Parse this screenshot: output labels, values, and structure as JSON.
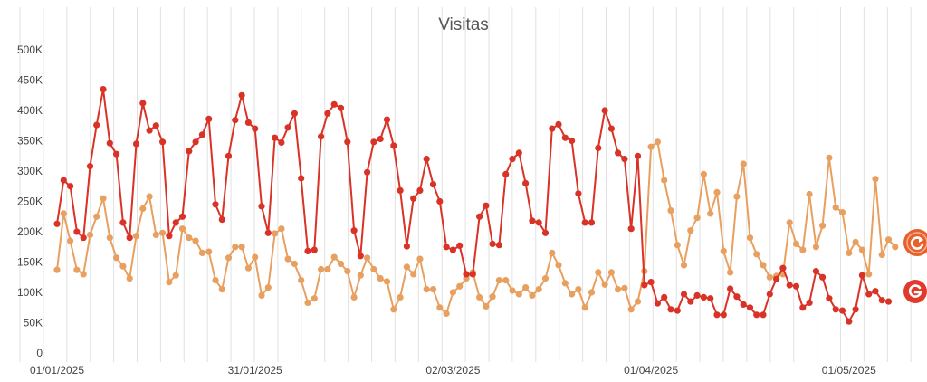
{
  "chart_data": {
    "type": "line",
    "title": "Visitas",
    "xlabel": "",
    "ylabel": "",
    "ylim": [
      0,
      500000
    ],
    "y_ticks": [
      "0",
      "50K",
      "100K",
      "150K",
      "200K",
      "250K",
      "300K",
      "350K",
      "400K",
      "450K",
      "500K"
    ],
    "x_ticks": [
      "01/01/2025",
      "31/01/2025",
      "02/03/2025",
      "01/04/2025",
      "01/05/2025"
    ],
    "x_tick_days": [
      0,
      30,
      60,
      90,
      120
    ],
    "grid": "vertical",
    "legend": "end-of-line icons",
    "series": [
      {
        "color": "#d93226",
        "icon": "google-g-icon",
        "x": [
          0,
          1,
          2,
          3,
          4,
          5,
          6,
          7,
          8,
          9,
          10,
          11,
          12,
          13,
          14,
          15,
          16,
          17,
          18,
          19,
          20,
          21,
          22,
          23,
          24,
          25,
          26,
          27,
          28,
          29,
          30,
          31,
          32,
          33,
          34,
          35,
          36,
          37,
          38,
          39,
          40,
          41,
          42,
          43,
          44,
          45,
          46,
          47,
          48,
          49,
          50,
          51,
          52,
          53,
          54,
          55,
          56,
          57,
          58,
          59,
          60,
          61,
          62,
          63,
          64,
          65,
          66,
          67,
          68,
          69,
          70,
          71,
          72,
          73,
          74,
          75,
          76,
          77,
          78,
          79,
          80,
          81,
          82,
          83,
          84,
          85,
          86,
          87,
          88,
          89,
          90,
          91,
          92,
          93,
          94,
          95,
          96,
          97,
          98,
          99,
          100,
          101,
          102,
          103,
          104,
          105,
          106,
          107,
          108,
          109,
          110,
          111,
          112,
          113,
          114,
          115,
          116,
          117,
          118,
          119,
          120,
          121,
          122,
          123,
          124,
          125,
          126
        ],
        "values": [
          213000,
          285000,
          275000,
          200000,
          190000,
          308000,
          376000,
          435000,
          346000,
          328000,
          215000,
          190000,
          345000,
          412000,
          367000,
          375000,
          348000,
          193000,
          215000,
          225000,
          333000,
          348000,
          360000,
          386000,
          245000,
          220000,
          325000,
          384000,
          425000,
          380000,
          370000,
          242000,
          198000,
          355000,
          347000,
          372000,
          395000,
          288000,
          168000,
          170000,
          357000,
          395000,
          410000,
          404000,
          348000,
          202000,
          160000,
          298000,
          348000,
          353000,
          385000,
          342000,
          268000,
          176000,
          255000,
          268000,
          320000,
          278000,
          250000,
          175000,
          170000,
          177000,
          130000,
          130000,
          225000,
          243000,
          180000,
          178000,
          295000,
          320000,
          330000,
          280000,
          218000,
          215000,
          198000,
          370000,
          377000,
          355000,
          350000,
          263000,
          215000,
          215000,
          338000,
          400000,
          370000,
          330000,
          320000,
          205000,
          325000,
          112000,
          117000,
          82000,
          92000,
          72000,
          70000,
          97000,
          85000,
          95000,
          92000,
          90000,
          63000,
          63000,
          106000,
          93000,
          80000,
          75000,
          63000,
          63000,
          97000,
          122000,
          140000,
          112000,
          110000,
          75000,
          83000,
          135000,
          125000,
          90000,
          72000,
          70000,
          52000,
          72000,
          128000,
          97000,
          102000,
          87000,
          85000
        ]
      },
      {
        "color": "#e8a060",
        "icon": "refresh-circle-icon",
        "x": [
          0,
          1,
          2,
          3,
          4,
          5,
          6,
          7,
          8,
          9,
          10,
          11,
          12,
          13,
          14,
          15,
          16,
          17,
          18,
          19,
          20,
          21,
          22,
          23,
          24,
          25,
          26,
          27,
          28,
          29,
          30,
          31,
          32,
          33,
          34,
          35,
          36,
          37,
          38,
          39,
          40,
          41,
          42,
          43,
          44,
          45,
          46,
          47,
          48,
          49,
          50,
          51,
          52,
          53,
          54,
          55,
          56,
          57,
          58,
          59,
          60,
          61,
          62,
          63,
          64,
          65,
          66,
          67,
          68,
          69,
          70,
          71,
          72,
          73,
          74,
          75,
          76,
          77,
          78,
          79,
          80,
          81,
          82,
          83,
          84,
          85,
          86,
          87,
          88,
          89,
          90,
          91,
          92,
          93,
          94,
          95,
          96,
          97,
          98,
          99,
          100,
          101,
          102,
          103,
          104,
          105,
          106,
          107,
          108,
          109,
          110,
          111,
          112,
          113,
          114,
          115,
          116,
          117,
          118,
          119,
          120,
          121,
          122,
          123,
          124,
          125,
          126,
          127
        ],
        "values": [
          137000,
          230000,
          185000,
          137000,
          130000,
          195000,
          225000,
          255000,
          190000,
          157000,
          143000,
          123000,
          193000,
          238000,
          258000,
          195000,
          198000,
          117000,
          128000,
          205000,
          190000,
          185000,
          165000,
          167000,
          120000,
          105000,
          157000,
          175000,
          175000,
          140000,
          158000,
          95000,
          108000,
          197000,
          205000,
          155000,
          147000,
          120000,
          83000,
          90000,
          138000,
          138000,
          158000,
          147000,
          135000,
          92000,
          128000,
          157000,
          138000,
          123000,
          118000,
          72000,
          92000,
          142000,
          130000,
          155000,
          105000,
          105000,
          75000,
          65000,
          100000,
          110000,
          123000,
          133000,
          92000,
          77000,
          93000,
          120000,
          120000,
          103000,
          97000,
          108000,
          95000,
          105000,
          123000,
          165000,
          145000,
          115000,
          97000,
          105000,
          75000,
          100000,
          133000,
          113000,
          133000,
          105000,
          107000,
          72000,
          85000,
          135000,
          340000,
          348000,
          285000,
          235000,
          178000,
          145000,
          202000,
          223000,
          295000,
          230000,
          265000,
          168000,
          133000,
          258000,
          312000,
          190000,
          163000,
          145000,
          125000,
          127000,
          130000,
          215000,
          180000,
          170000,
          262000,
          175000,
          210000,
          322000,
          240000,
          232000,
          165000,
          183000,
          170000,
          130000,
          287000,
          162000,
          187000,
          175000
        ]
      }
    ]
  }
}
